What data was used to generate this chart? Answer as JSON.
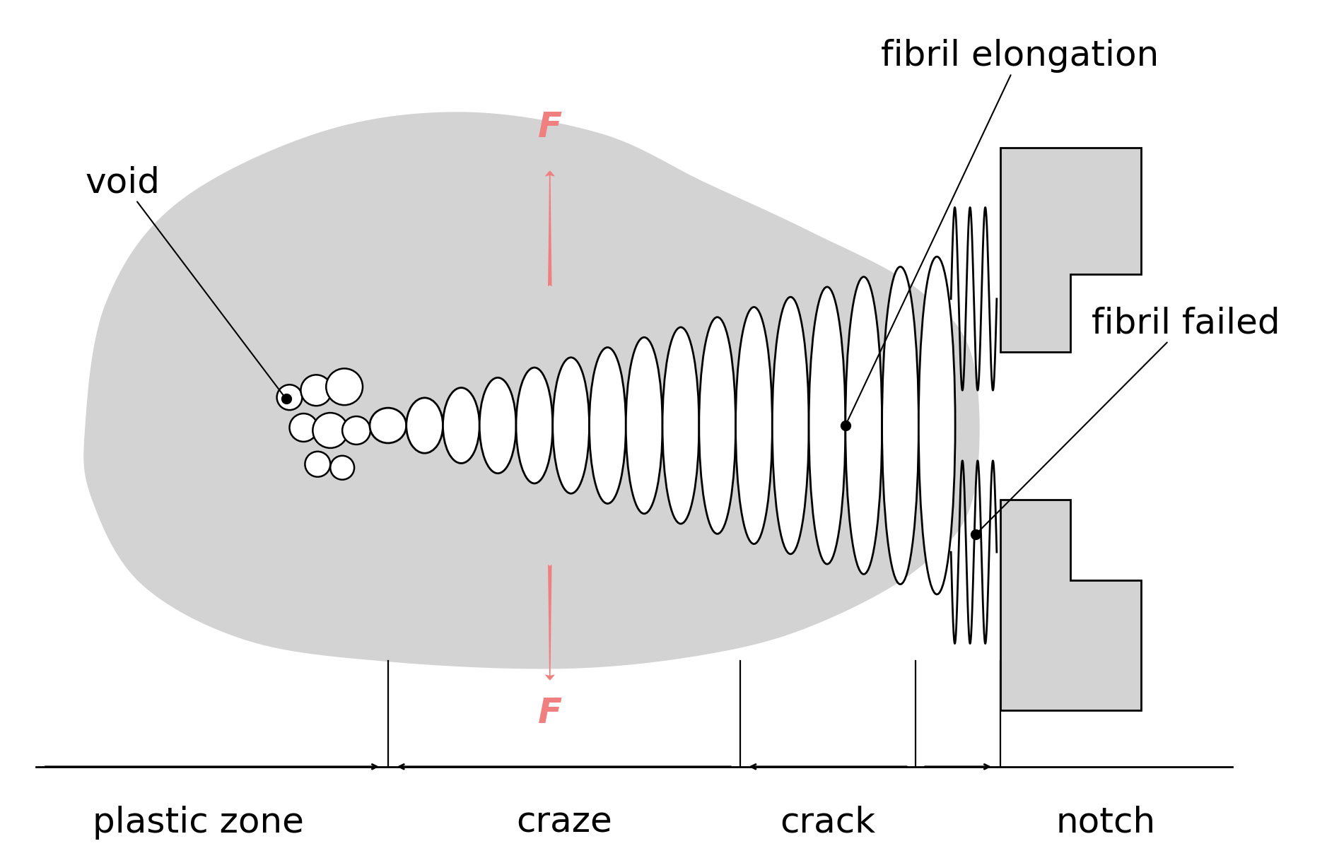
{
  "bg_color": "#ffffff",
  "gray_color": "#d3d3d3",
  "arrow_color": "#f08080",
  "line_color": "#000000",
  "figsize": [
    18.94,
    12.14
  ],
  "dpi": 100,
  "labels": {
    "void": "void",
    "fibril_elongation": "fibril elongation",
    "fibril_failed": "fibril failed",
    "plastic_zone": "plastic zone",
    "craze": "craze",
    "crack": "crack",
    "notch": "notch",
    "F": "F"
  },
  "font_size_large": 36,
  "font_size_medium": 30
}
